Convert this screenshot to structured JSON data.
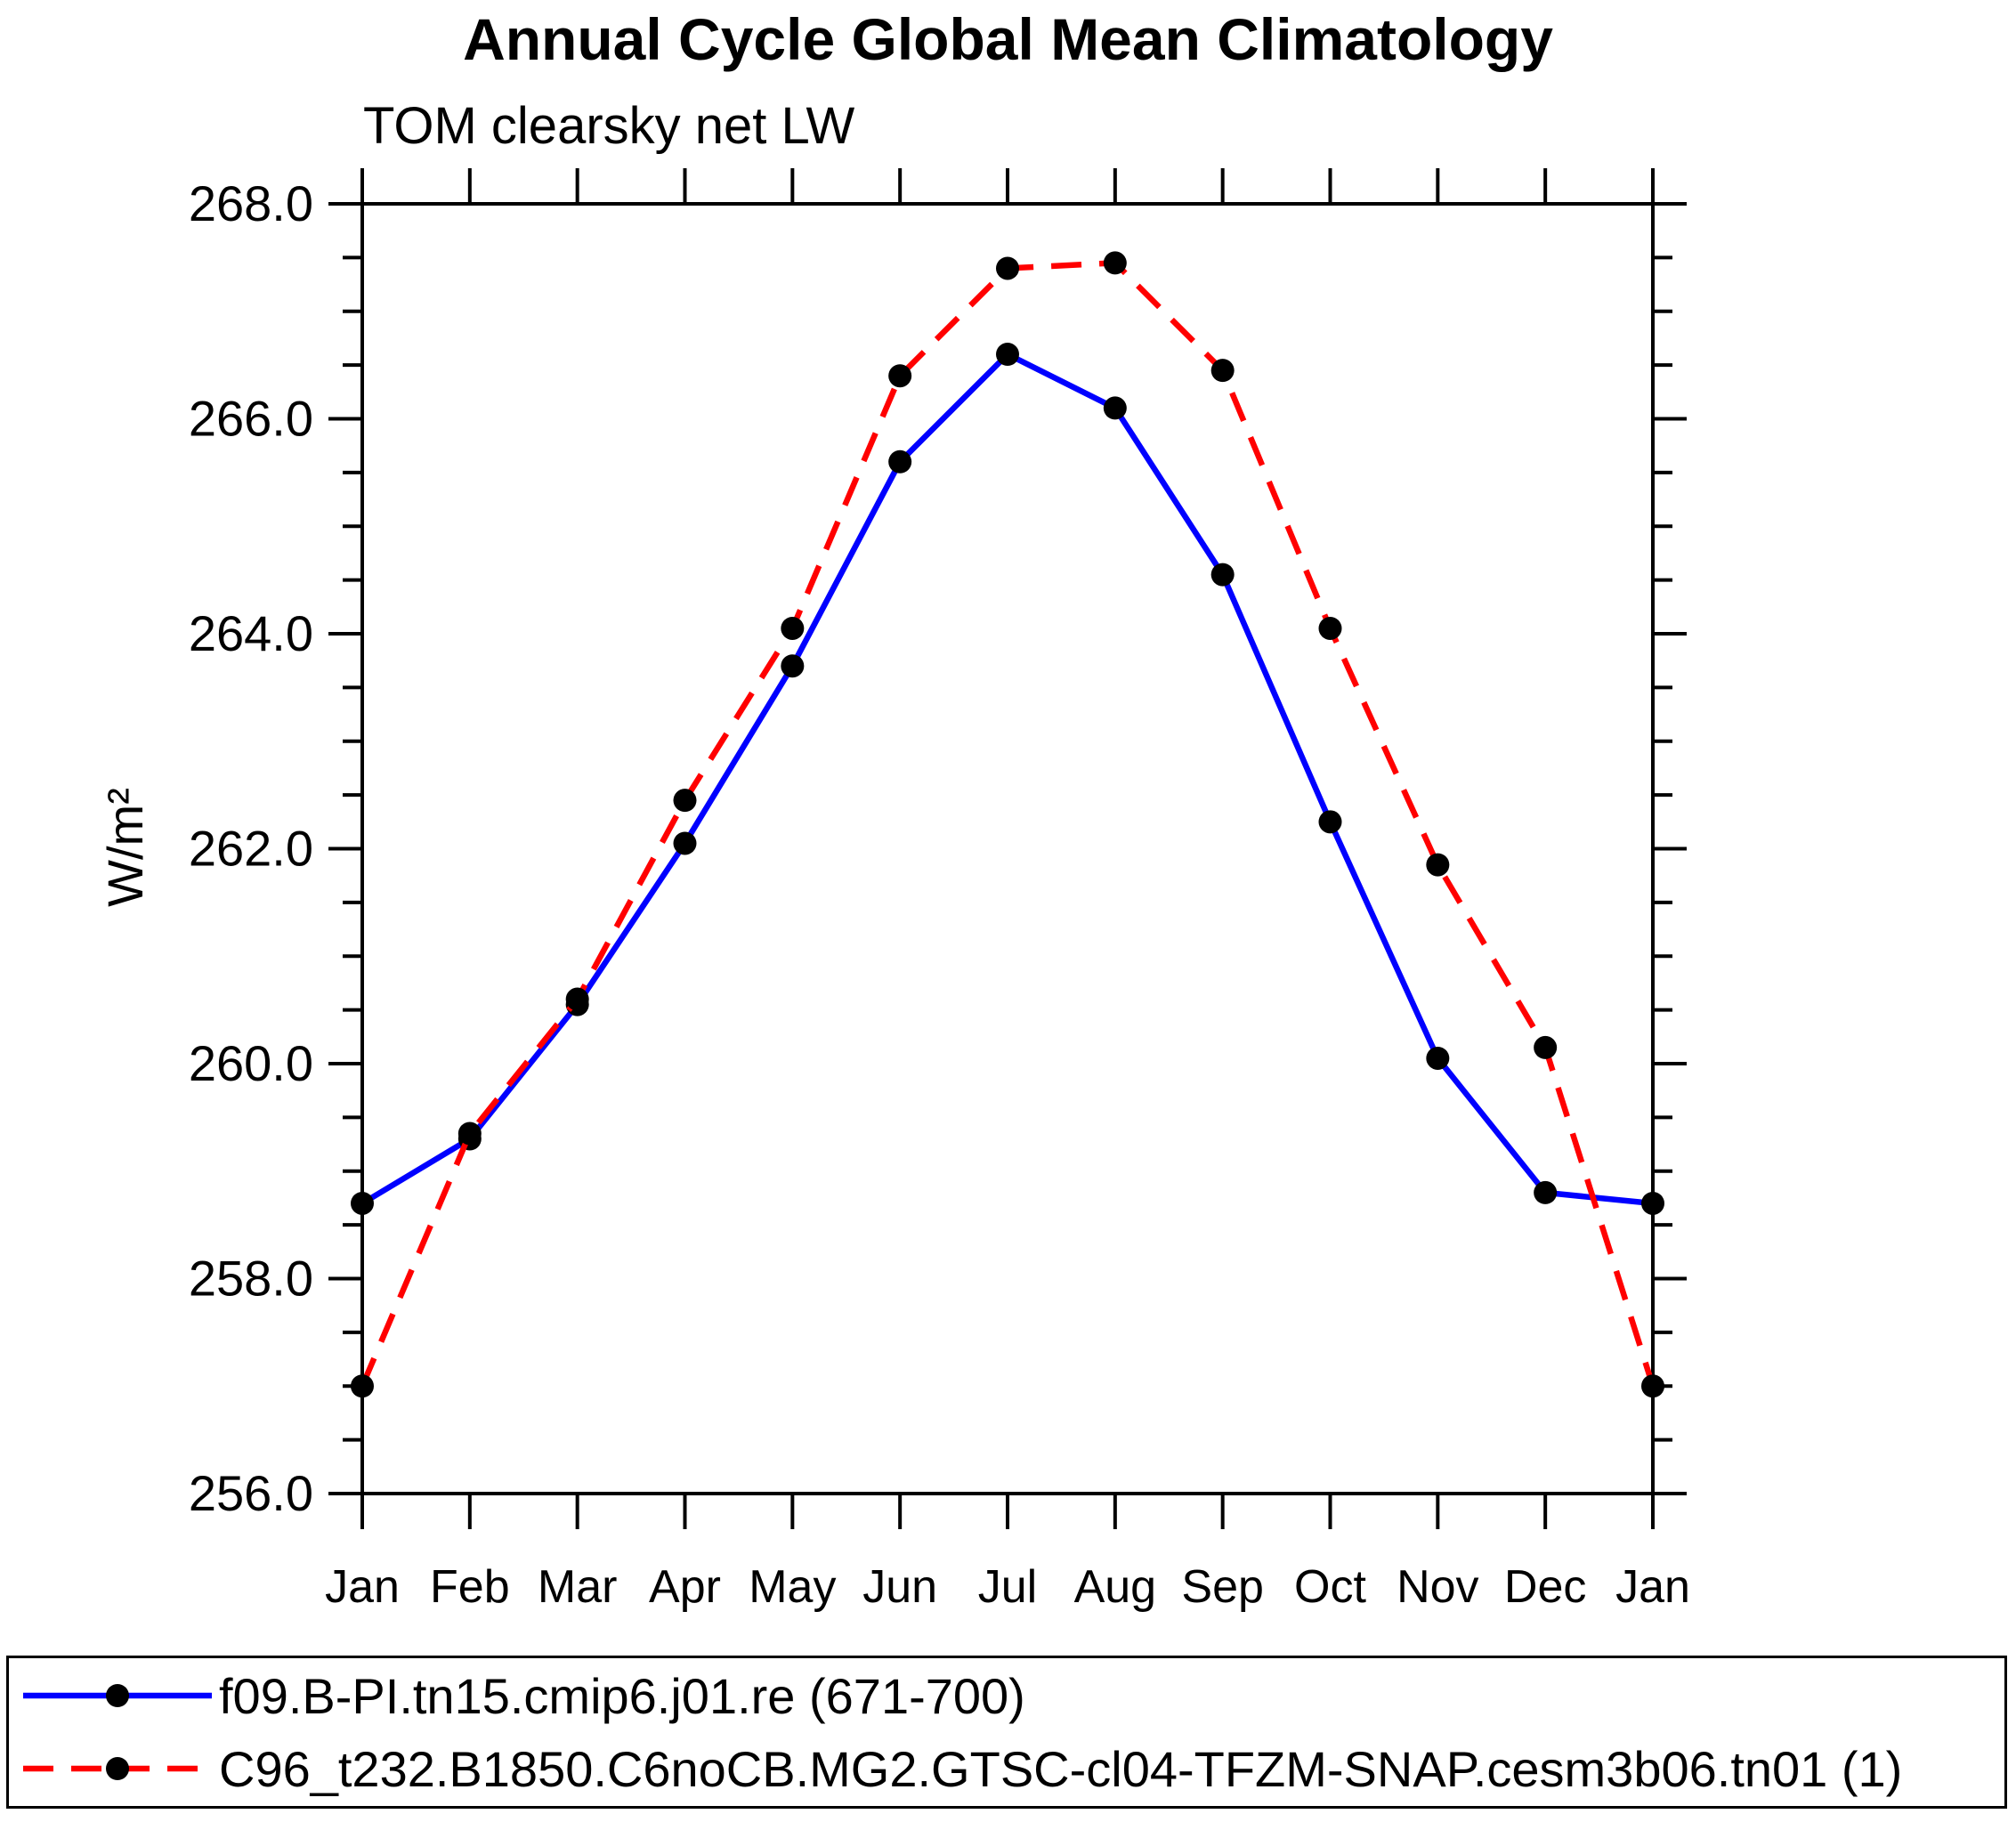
{
  "title": "Annual Cycle Global Mean Climatology",
  "subtitle": "TOM clearsky net LW",
  "colors": {
    "series1": "#0000ff",
    "series2": "#ff0000",
    "marker": "#000000",
    "axis": "#000000",
    "background": "#ffffff"
  },
  "chart_data": {
    "type": "line",
    "title": "Annual Cycle Global Mean Climatology",
    "subtitle": "TOM clearsky net LW",
    "ylabel": "W/m²",
    "xlabel": "",
    "categories": [
      "Jan",
      "Feb",
      "Mar",
      "Apr",
      "May",
      "Jun",
      "Jul",
      "Aug",
      "Sep",
      "Oct",
      "Nov",
      "Dec",
      "Jan"
    ],
    "ylim": [
      256.0,
      268.0
    ],
    "ytick_major": 2.0,
    "ytick_minor": 0.5,
    "ytick_label_format": "one_decimal",
    "grid": false,
    "legend_position": "bottom",
    "series": [
      {
        "name": "f09.B-PI.tn15.cmip6.j01.re (671-700)",
        "color": "#0000ff",
        "style": "solid",
        "marker": "circle",
        "values": [
          258.7,
          259.3,
          260.55,
          262.05,
          263.7,
          265.6,
          266.6,
          266.1,
          264.55,
          262.25,
          260.05,
          258.8,
          258.7
        ]
      },
      {
        "name": "C96_t232.B1850.C6noCB.MG2.GTSC-cl04-TFZM-SNAP.cesm3b06.tn01 (1)",
        "color": "#ff0000",
        "style": "dashed",
        "marker": "circle",
        "values": [
          257.0,
          259.35,
          260.6,
          262.45,
          264.05,
          266.4,
          267.4,
          267.45,
          266.45,
          264.05,
          261.85,
          260.15,
          257.0
        ]
      }
    ]
  }
}
